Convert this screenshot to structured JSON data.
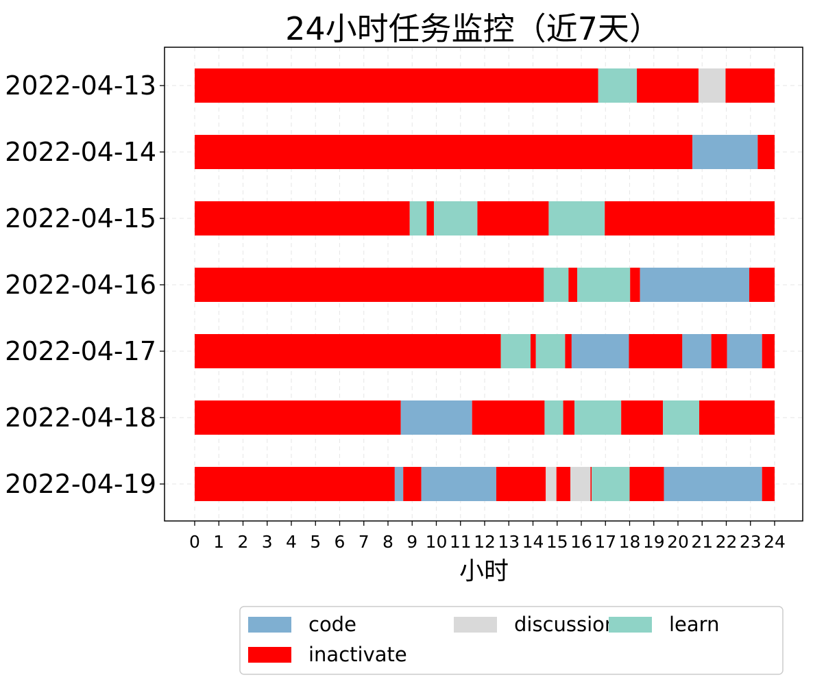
{
  "chart_data": {
    "type": "bar",
    "orientation": "horizontal-stacked-timeline",
    "title": "24小时任务监控（近7天）",
    "xlabel": "小时",
    "ylabel": "",
    "xlim": [
      0,
      24
    ],
    "xticks": [
      "0",
      "1",
      "2",
      "3",
      "4",
      "5",
      "6",
      "7",
      "8",
      "9",
      "10",
      "11",
      "12",
      "13",
      "14",
      "15",
      "16",
      "17",
      "18",
      "19",
      "20",
      "21",
      "22",
      "23",
      "24"
    ],
    "grid": true,
    "legend_position": "bottom-center",
    "legend": [
      {
        "name": "code",
        "color": "#7fafd1"
      },
      {
        "name": "discussion",
        "color": "#d9d9d9"
      },
      {
        "name": "learn",
        "color": "#8fd3c6"
      },
      {
        "name": "inactivate",
        "color": "#ff0000"
      }
    ],
    "categories": [
      "2022-04-13",
      "2022-04-14",
      "2022-04-15",
      "2022-04-16",
      "2022-04-17",
      "2022-04-18",
      "2022-04-19"
    ],
    "rows": [
      {
        "date": "2022-04-13",
        "segments": [
          {
            "start": 0.0,
            "end": 16.7,
            "type": "inactivate"
          },
          {
            "start": 16.7,
            "end": 18.3,
            "type": "learn"
          },
          {
            "start": 18.3,
            "end": 20.85,
            "type": "inactivate"
          },
          {
            "start": 20.85,
            "end": 21.97,
            "type": "discussion"
          },
          {
            "start": 21.97,
            "end": 24.0,
            "type": "inactivate"
          }
        ]
      },
      {
        "date": "2022-04-14",
        "segments": [
          {
            "start": 0.0,
            "end": 20.6,
            "type": "inactivate"
          },
          {
            "start": 20.6,
            "end": 23.3,
            "type": "code"
          },
          {
            "start": 23.3,
            "end": 24.0,
            "type": "inactivate"
          }
        ]
      },
      {
        "date": "2022-04-15",
        "segments": [
          {
            "start": 0.0,
            "end": 8.9,
            "type": "inactivate"
          },
          {
            "start": 8.9,
            "end": 9.6,
            "type": "learn"
          },
          {
            "start": 9.6,
            "end": 9.9,
            "type": "inactivate"
          },
          {
            "start": 9.9,
            "end": 11.7,
            "type": "learn"
          },
          {
            "start": 11.7,
            "end": 14.65,
            "type": "inactivate"
          },
          {
            "start": 14.65,
            "end": 16.97,
            "type": "learn"
          },
          {
            "start": 16.97,
            "end": 24.0,
            "type": "inactivate"
          }
        ]
      },
      {
        "date": "2022-04-16",
        "segments": [
          {
            "start": 0.0,
            "end": 14.45,
            "type": "inactivate"
          },
          {
            "start": 14.45,
            "end": 15.47,
            "type": "learn"
          },
          {
            "start": 15.47,
            "end": 15.83,
            "type": "inactivate"
          },
          {
            "start": 15.83,
            "end": 18.02,
            "type": "learn"
          },
          {
            "start": 18.02,
            "end": 18.43,
            "type": "inactivate"
          },
          {
            "start": 18.43,
            "end": 22.95,
            "type": "code"
          },
          {
            "start": 22.95,
            "end": 24.0,
            "type": "inactivate"
          }
        ]
      },
      {
        "date": "2022-04-17",
        "segments": [
          {
            "start": 0.0,
            "end": 12.67,
            "type": "inactivate"
          },
          {
            "start": 12.67,
            "end": 13.9,
            "type": "learn"
          },
          {
            "start": 13.9,
            "end": 14.12,
            "type": "inactivate"
          },
          {
            "start": 14.12,
            "end": 15.33,
            "type": "learn"
          },
          {
            "start": 15.33,
            "end": 15.6,
            "type": "inactivate"
          },
          {
            "start": 15.6,
            "end": 17.97,
            "type": "code"
          },
          {
            "start": 17.97,
            "end": 20.18,
            "type": "inactivate"
          },
          {
            "start": 20.18,
            "end": 21.38,
            "type": "code"
          },
          {
            "start": 21.38,
            "end": 22.03,
            "type": "inactivate"
          },
          {
            "start": 22.03,
            "end": 23.48,
            "type": "code"
          },
          {
            "start": 23.48,
            "end": 24.0,
            "type": "inactivate"
          }
        ]
      },
      {
        "date": "2022-04-18",
        "segments": [
          {
            "start": 0.0,
            "end": 8.53,
            "type": "inactivate"
          },
          {
            "start": 8.53,
            "end": 11.48,
            "type": "code"
          },
          {
            "start": 11.48,
            "end": 14.48,
            "type": "inactivate"
          },
          {
            "start": 14.48,
            "end": 15.25,
            "type": "learn"
          },
          {
            "start": 15.25,
            "end": 15.72,
            "type": "inactivate"
          },
          {
            "start": 15.72,
            "end": 17.65,
            "type": "learn"
          },
          {
            "start": 17.65,
            "end": 19.38,
            "type": "inactivate"
          },
          {
            "start": 19.38,
            "end": 20.88,
            "type": "learn"
          },
          {
            "start": 20.88,
            "end": 24.0,
            "type": "inactivate"
          }
        ]
      },
      {
        "date": "2022-04-19",
        "segments": [
          {
            "start": 0.0,
            "end": 8.28,
            "type": "inactivate"
          },
          {
            "start": 8.28,
            "end": 8.63,
            "type": "code"
          },
          {
            "start": 8.63,
            "end": 9.38,
            "type": "inactivate"
          },
          {
            "start": 9.38,
            "end": 12.48,
            "type": "code"
          },
          {
            "start": 12.48,
            "end": 14.53,
            "type": "inactivate"
          },
          {
            "start": 14.53,
            "end": 14.97,
            "type": "discussion"
          },
          {
            "start": 14.97,
            "end": 15.55,
            "type": "inactivate"
          },
          {
            "start": 15.55,
            "end": 16.38,
            "type": "discussion"
          },
          {
            "start": 16.38,
            "end": 16.43,
            "type": "inactivate"
          },
          {
            "start": 16.43,
            "end": 18.0,
            "type": "learn"
          },
          {
            "start": 18.0,
            "end": 19.42,
            "type": "inactivate"
          },
          {
            "start": 19.42,
            "end": 23.48,
            "type": "code"
          },
          {
            "start": 23.48,
            "end": 24.0,
            "type": "inactivate"
          }
        ]
      }
    ]
  }
}
